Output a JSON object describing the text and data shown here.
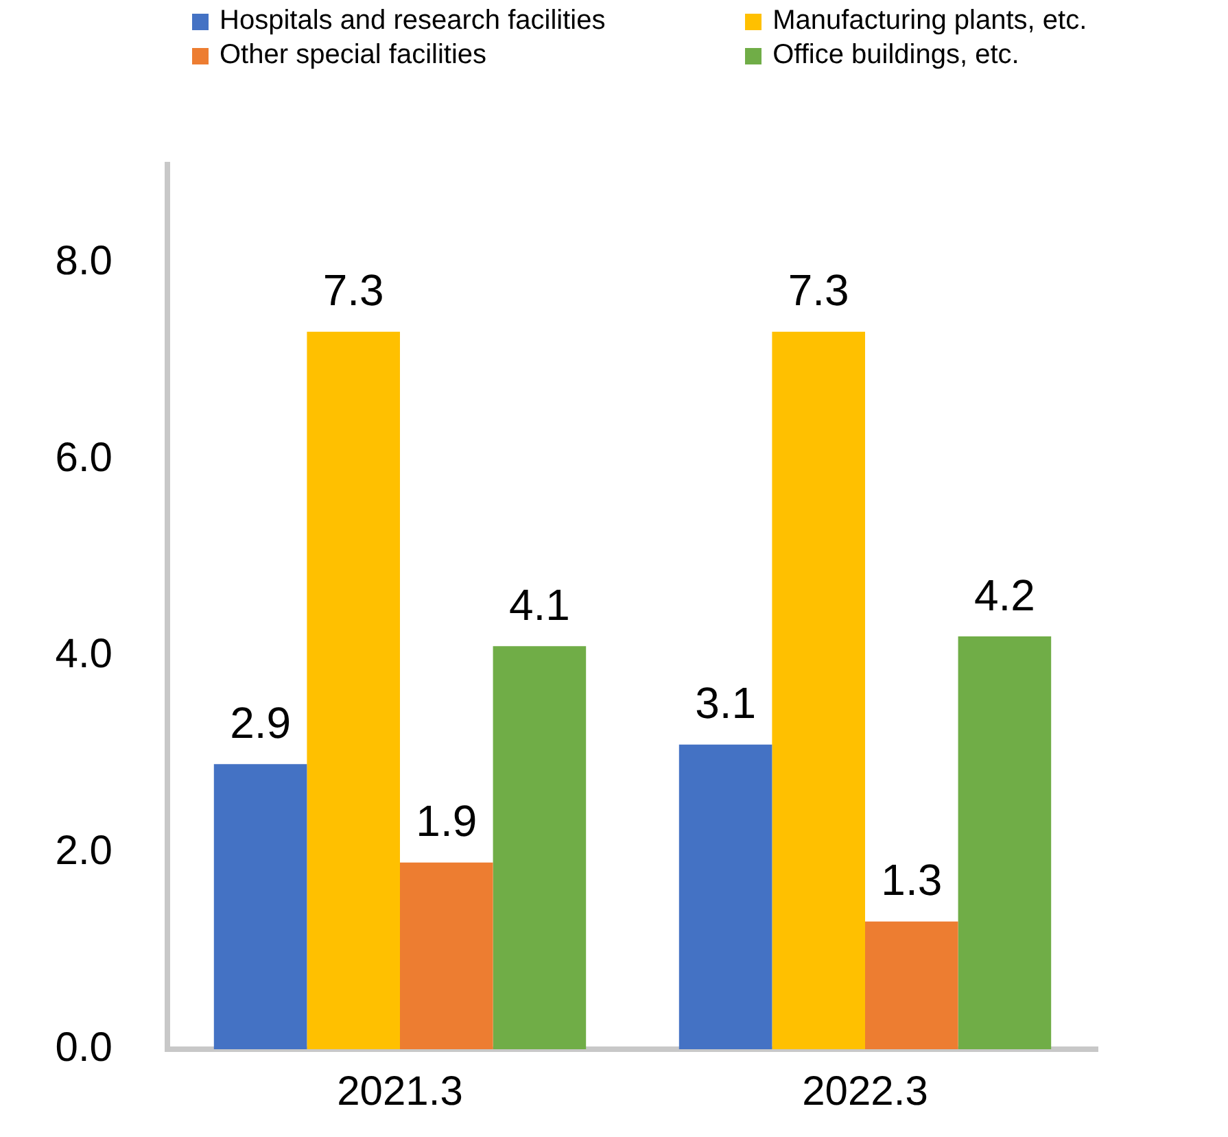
{
  "chart_data": {
    "type": "bar",
    "categories": [
      "2021.3",
      "2022.3"
    ],
    "series": [
      {
        "name": "Hospitals and research facilities",
        "color": "#4472c4",
        "values": [
          2.9,
          3.1
        ]
      },
      {
        "name": "Manufacturing plants, etc.",
        "color": "#ffc000",
        "values": [
          7.3,
          7.3
        ]
      },
      {
        "name": "Other special facilities",
        "color": "#ed7d31",
        "values": [
          1.9,
          1.3
        ]
      },
      {
        "name": "Office buildings, etc.",
        "color": "#70ad47",
        "values": [
          4.1,
          4.2
        ]
      }
    ],
    "ylim": [
      0,
      9
    ],
    "yticks": [
      {
        "value": 0,
        "label": "0.0"
      },
      {
        "value": 2,
        "label": "2.0"
      },
      {
        "value": 4,
        "label": "4.0"
      },
      {
        "value": 6,
        "label": "6.0"
      },
      {
        "value": 8,
        "label": "8.0"
      }
    ],
    "grid": false,
    "legend": "top",
    "data_labels": true
  }
}
